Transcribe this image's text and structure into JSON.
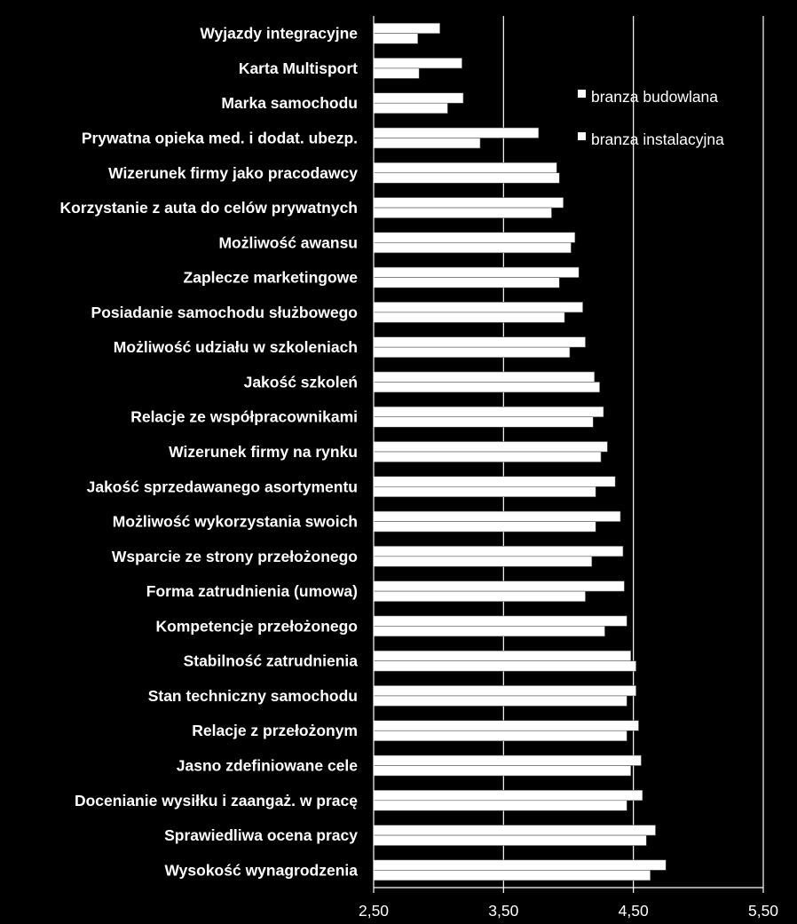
{
  "chart_data": {
    "type": "bar",
    "orientation": "horizontal",
    "categories": [
      "Wyjazdy integracyjne",
      "Karta Multisport",
      "Marka samochodu",
      "Prywatna opieka med. i dodat. ubezp.",
      "Wizerunek firmy jako pracodawcy",
      "Korzystanie z auta do celów prywatnych",
      "Możliwość awansu",
      "Zaplecze marketingowe",
      "Posiadanie samochodu służbowego",
      "Możliwość udziału w szkoleniach",
      "Jakość szkoleń",
      "Relacje ze współpracownikami",
      "Wizerunek firmy na rynku",
      "Jakość sprzedawanego asortymentu",
      "Możliwość wykorzystania swoich",
      "Wsparcie ze strony przełożonego",
      "Forma zatrudnienia (umowa)",
      "Kompetencje przełożonego",
      "Stabilność zatrudnienia",
      "Stan techniczny samochodu",
      "Relacje z przełożonym",
      "Jasno zdefiniowane cele",
      "Docenianie wysiłku i zaangaż. w pracę",
      "Sprawiedliwa ocena pracy",
      "Wysokość wynagrodzenia"
    ],
    "series": [
      {
        "name": "branza budowlana",
        "values": [
          3.01,
          3.18,
          3.19,
          3.77,
          3.91,
          3.96,
          4.05,
          4.08,
          4.11,
          4.13,
          4.2,
          4.27,
          4.3,
          4.36,
          4.4,
          4.42,
          4.43,
          4.45,
          4.48,
          4.52,
          4.54,
          4.56,
          4.57,
          4.67,
          4.75
        ]
      },
      {
        "name": "branza instalacyjna",
        "values": [
          2.84,
          2.85,
          3.07,
          3.32,
          3.93,
          3.87,
          4.02,
          3.93,
          3.97,
          4.01,
          4.24,
          4.19,
          4.25,
          4.21,
          4.21,
          4.18,
          4.13,
          4.28,
          4.52,
          4.45,
          4.45,
          4.48,
          4.45,
          4.6,
          4.63
        ]
      }
    ],
    "xlim": [
      2.5,
      5.5
    ],
    "ticks": [
      2.5,
      3.5,
      4.5,
      5.5
    ],
    "tick_labels": [
      "2,50",
      "3,50",
      "4,50",
      "5,50"
    ],
    "grid": "vertical",
    "legend": "top-right",
    "colors": {
      "background": "#000000",
      "bars": "#ffffff",
      "text": "#ffffff",
      "grid": "#ffffff"
    }
  }
}
